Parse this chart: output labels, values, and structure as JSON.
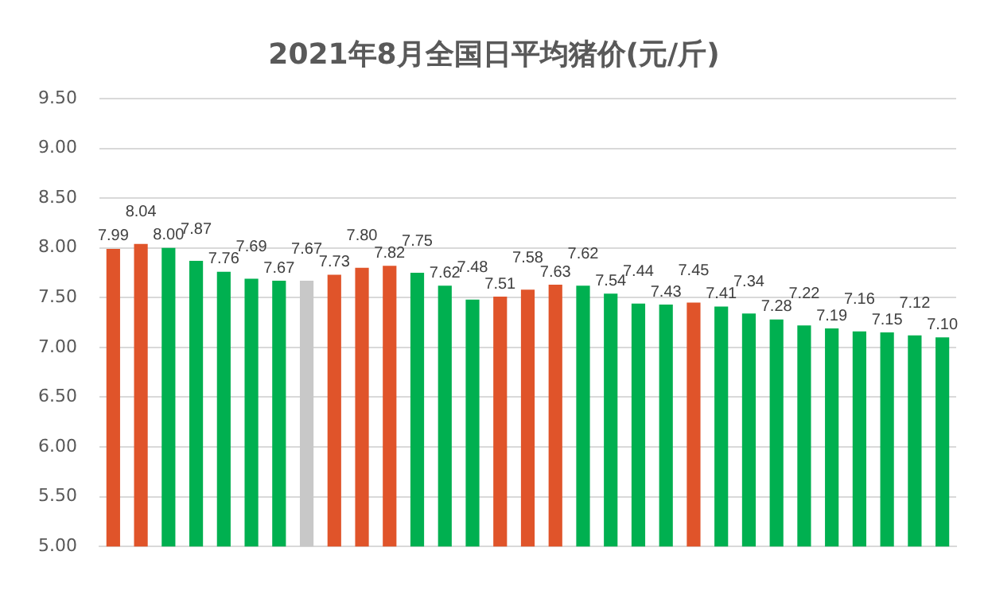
{
  "chart_data": {
    "type": "bar",
    "title": "2021年8月全国日平均猪价(元/斤)",
    "categories": [
      null,
      null,
      null,
      null,
      null,
      null,
      null,
      null,
      null,
      null,
      null,
      null,
      null,
      null,
      null,
      null,
      null,
      null,
      null,
      null,
      null,
      null,
      null,
      null,
      null,
      null,
      null,
      null,
      null,
      null,
      null
    ],
    "values": [
      7.99,
      8.04,
      8.0,
      7.87,
      7.76,
      7.69,
      7.67,
      7.67,
      7.73,
      7.8,
      7.82,
      7.75,
      7.62,
      7.48,
      7.51,
      7.58,
      7.63,
      7.62,
      7.54,
      7.44,
      7.43,
      7.45,
      7.41,
      7.34,
      7.28,
      7.22,
      7.19,
      7.16,
      7.15,
      7.12,
      7.1
    ],
    "colors": [
      "#e0542a",
      "#e0542a",
      "#00b050",
      "#00b050",
      "#00b050",
      "#00b050",
      "#00b050",
      "#c8c8c8",
      "#e0542a",
      "#e0542a",
      "#e0542a",
      "#00b050",
      "#00b050",
      "#00b050",
      "#e0542a",
      "#e0542a",
      "#e0542a",
      "#00b050",
      "#00b050",
      "#00b050",
      "#00b050",
      "#e0542a",
      "#00b050",
      "#00b050",
      "#00b050",
      "#00b050",
      "#00b050",
      "#00b050",
      "#00b050",
      "#00b050",
      "#00b050"
    ],
    "ylim": [
      5,
      9.5
    ],
    "yticks": [
      {
        "value": 5,
        "label": "5.00"
      },
      {
        "value": 5.5,
        "label": "5.50"
      },
      {
        "value": 6,
        "label": "6.00"
      },
      {
        "value": 6.5,
        "label": "6.50"
      },
      {
        "value": 7,
        "label": "7.00"
      },
      {
        "value": 7.5,
        "label": "7.50"
      },
      {
        "value": 8,
        "label": "8.00"
      },
      {
        "value": 8.5,
        "label": "8.50"
      },
      {
        "value": 9,
        "label": "9.00"
      },
      {
        "value": 9.5,
        "label": "9.50"
      }
    ],
    "value_labels": [
      "7.99",
      "8.04",
      "8.00",
      "7.87",
      "7.76",
      "7.69",
      "7.67",
      "7.67",
      "7.73",
      "7.80",
      "7.82",
      "7.75",
      "7.62",
      "7.48",
      "7.51",
      "7.58",
      "7.63",
      "7.62",
      "7.54",
      "7.44",
      "7.43",
      "7.45",
      "7.41",
      "7.34",
      "7.28",
      "7.22",
      "7.19",
      "7.16",
      "7.15",
      "7.12",
      "7.10"
    ],
    "grid": "y"
  }
}
